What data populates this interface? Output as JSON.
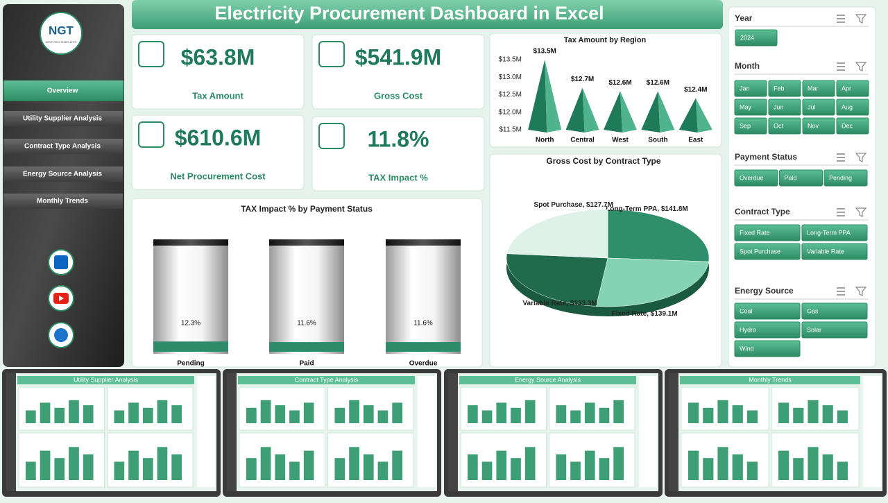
{
  "header": {
    "title": "Electricity Procurement Dashboard in Excel"
  },
  "logo": {
    "text": "NGT",
    "tagline": "NEXT GEN TEMPLATES"
  },
  "nav": [
    "Overview",
    "Utility Supplier Analysis",
    "Contract Type Analysis",
    "Energy Source Analysis",
    "Monthly Trends"
  ],
  "kpis": [
    {
      "value": "$63.8M",
      "label": "Tax Amount"
    },
    {
      "value": "$541.9M",
      "label": "Gross Cost"
    },
    {
      "value": "$610.6M",
      "label": "Net Procurement Cost"
    },
    {
      "value": "11.8%",
      "label": "TAX Impact %"
    }
  ],
  "chart_data": [
    {
      "type": "bar",
      "title": "Tax Amount by Region",
      "categories": [
        "North",
        "Central",
        "West",
        "South",
        "East"
      ],
      "values": [
        13.5,
        12.7,
        12.6,
        12.6,
        12.4
      ],
      "value_labels": [
        "$13.5M",
        "$12.7M",
        "$12.6M",
        "$12.6M",
        "$12.4M"
      ],
      "color": "#1e7a58",
      "ylim": [
        11.5,
        13.5
      ],
      "yticks": [
        {
          "value": 11.5,
          "label": "$11.5M"
        },
        {
          "value": 12,
          "label": "$12.0M"
        },
        {
          "value": 12.5,
          "label": "$12.5M"
        },
        {
          "value": 13,
          "label": "$13.0M"
        },
        {
          "value": 13.5,
          "label": "$13.5M"
        }
      ],
      "grid": false
    },
    {
      "type": "bar",
      "title": "TAX Impact % by Payment Status",
      "categories": [
        "Pending",
        "Paid",
        "Overdue"
      ],
      "values": [
        12.3,
        11.6,
        11.6
      ],
      "value_labels": [
        "12.3%",
        "11.6%",
        "11.6%"
      ],
      "color": "#2e8b6a"
    },
    {
      "type": "pie",
      "title": "Gross Cost by Contract Type",
      "values": [
        141.8,
        139.1,
        133.3,
        127.7
      ],
      "value_labels": [
        "Long-Term PPA, $141.8M",
        "Fixed Rate, $139.1M",
        "Variable Rate, $133.3M",
        "Spot Purchase, $127.7M"
      ],
      "colors": [
        "#2f8f6c",
        "#84d3b6",
        "#1f6b4c",
        "#dff2e9"
      ]
    }
  ],
  "slicers": [
    {
      "title": "Year",
      "items": [
        "2024"
      ]
    },
    {
      "title": "Month",
      "items": [
        "Jan",
        "Feb",
        "Mar",
        "Apr",
        "May",
        "Jun",
        "Jul",
        "Aug",
        "Sep",
        "Oct",
        "Nov",
        "Dec"
      ]
    },
    {
      "title": "Payment Status",
      "items": [
        "Overdue",
        "Paid",
        "Pending"
      ]
    },
    {
      "title": "Contract Type",
      "items": [
        "Fixed Rate",
        "Long-Term PPA",
        "Spot Purchase",
        "Variable Rate"
      ]
    },
    {
      "title": "Energy Source",
      "items": [
        "Coal",
        "Gas",
        "Hydro",
        "Solar",
        "Wind"
      ]
    }
  ],
  "thumbnails": [
    "Utility Supplier Analysis",
    "Contract Type Analysis",
    "Energy Source Analysis",
    "Monthly Trends"
  ]
}
